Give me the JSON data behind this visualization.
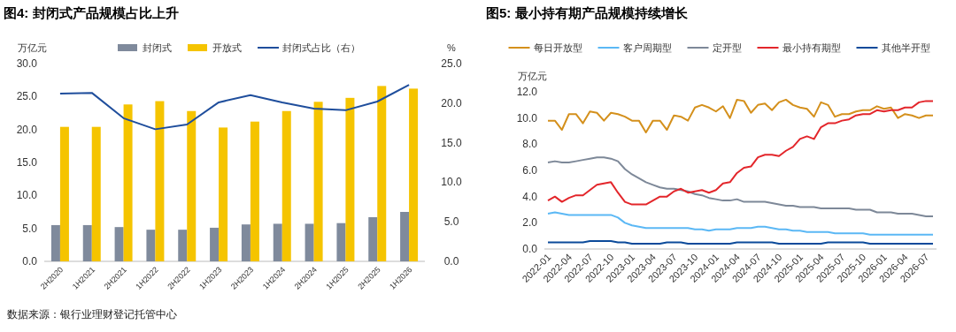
{
  "chart_data": [
    {
      "type": "bar",
      "title": "图4: 封闭式产品规模占比上升",
      "ylabel": "万亿元",
      "y2label": "%",
      "legend": "top",
      "grid": false,
      "categories": [
        "2H2020",
        "1H2021",
        "2H2021",
        "1H2022",
        "2H2022",
        "1H2023",
        "2H2023",
        "1H2024",
        "2H2024",
        "1H2025",
        "2H2025",
        "1H2026"
      ],
      "series": [
        {
          "name": "封闭式",
          "color": "#7f8a9c",
          "values": [
            5.5,
            5.5,
            5.2,
            4.8,
            4.8,
            5.1,
            5.6,
            5.7,
            5.7,
            5.8,
            6.7,
            7.5
          ]
        },
        {
          "name": "开放式",
          "color": "#f5c400",
          "values": [
            20.4,
            20.4,
            23.8,
            24.3,
            22.8,
            20.3,
            21.2,
            22.8,
            24.2,
            24.8,
            26.6,
            26.2
          ]
        },
        {
          "name": "封闭式占比（右）",
          "type": "line",
          "axis": "y2",
          "color": "#1f4e9c",
          "values": [
            21.2,
            21.3,
            18.1,
            16.7,
            17.3,
            20.1,
            21.0,
            20.1,
            19.3,
            19.1,
            20.2,
            22.3
          ]
        }
      ],
      "ylim": [
        0,
        30
      ],
      "yticks": [
        {
          "value": 0,
          "label": "0.0"
        },
        {
          "value": 5,
          "label": "5.0"
        },
        {
          "value": 10,
          "label": "10.0"
        },
        {
          "value": 15,
          "label": "15.0"
        },
        {
          "value": 20,
          "label": "20.0"
        },
        {
          "value": 25,
          "label": "25.0"
        },
        {
          "value": 30,
          "label": "30.0"
        }
      ],
      "y2lim": [
        0,
        25
      ],
      "y2ticks": [
        {
          "value": 0,
          "label": "0.0"
        },
        {
          "value": 5,
          "label": "5.0"
        },
        {
          "value": 10,
          "label": "10.0"
        },
        {
          "value": 15,
          "label": "15.0"
        },
        {
          "value": 20,
          "label": "20.0"
        },
        {
          "value": 25,
          "label": "25.0"
        }
      ],
      "annotations": [
        "数据来源：银行业理财登记托管中心"
      ]
    },
    {
      "type": "line",
      "title": "图5: 最小持有期产品规模持续增长",
      "ylabel": "万亿元",
      "legend": "top",
      "grid": false,
      "categories": [
        "2022-01",
        null,
        null,
        "2022-04",
        null,
        null,
        "2022-07",
        null,
        null,
        "2022-10",
        null,
        null,
        "2023-01",
        null,
        null,
        "2023-04",
        null,
        null,
        "2023-07",
        null,
        null,
        "2023-10",
        null,
        null,
        "2024-01",
        null,
        null,
        "2024-04",
        null,
        null,
        "2024-07",
        null,
        null,
        "2024-10",
        null,
        null,
        "2025-01",
        null,
        null,
        "2025-04",
        null,
        null,
        "2025-07",
        null,
        null,
        "2025-10",
        null,
        null,
        "2026-01",
        null,
        null,
        "2026-04",
        null,
        null,
        "2026-07",
        null
      ],
      "series": [
        {
          "name": "每日开放型",
          "color": "#d4901c",
          "values": [
            9.8,
            9.8,
            9.1,
            10.3,
            10.3,
            9.6,
            10.5,
            10.4,
            9.8,
            10.4,
            10.3,
            10.1,
            9.8,
            9.8,
            8.9,
            9.8,
            9.8,
            9.1,
            10.2,
            10.1,
            9.8,
            10.8,
            11.0,
            10.8,
            10.5,
            10.9,
            10.0,
            11.4,
            11.3,
            10.4,
            11.0,
            11.1,
            10.6,
            11.2,
            11.4,
            11.0,
            10.8,
            10.7,
            10.1,
            11.2,
            11.0,
            10.1,
            10.3,
            10.3,
            10.5,
            10.6,
            10.6,
            10.9,
            10.7,
            10.8,
            10.0,
            10.3,
            10.2,
            10.0,
            10.2,
            10.2
          ]
        },
        {
          "name": "客户周期型",
          "color": "#5bb8f5",
          "values": [
            2.7,
            2.8,
            2.7,
            2.6,
            2.6,
            2.6,
            2.6,
            2.6,
            2.6,
            2.6,
            2.4,
            2.0,
            1.8,
            1.7,
            1.6,
            1.6,
            1.6,
            1.6,
            1.6,
            1.6,
            1.6,
            1.5,
            1.5,
            1.4,
            1.5,
            1.5,
            1.5,
            1.6,
            1.6,
            1.6,
            1.7,
            1.7,
            1.6,
            1.5,
            1.5,
            1.4,
            1.4,
            1.3,
            1.3,
            1.3,
            1.3,
            1.2,
            1.2,
            1.2,
            1.2,
            1.2,
            1.1,
            1.1,
            1.1,
            1.1,
            1.1,
            1.1,
            1.1,
            1.1,
            1.1,
            1.1
          ]
        },
        {
          "name": "定开型",
          "color": "#7d8898",
          "values": [
            6.6,
            6.7,
            6.6,
            6.6,
            6.7,
            6.8,
            6.9,
            7.0,
            7.0,
            6.9,
            6.7,
            6.1,
            5.7,
            5.4,
            5.1,
            4.9,
            4.7,
            4.6,
            4.6,
            4.5,
            4.4,
            4.2,
            4.1,
            3.9,
            3.8,
            3.7,
            3.7,
            3.8,
            3.6,
            3.6,
            3.6,
            3.6,
            3.5,
            3.4,
            3.3,
            3.3,
            3.2,
            3.2,
            3.2,
            3.1,
            3.1,
            3.1,
            3.1,
            3.1,
            3.0,
            3.0,
            3.0,
            2.8,
            2.8,
            2.8,
            2.7,
            2.7,
            2.7,
            2.6,
            2.5,
            2.5
          ]
        },
        {
          "name": "最小持有期型",
          "color": "#e3262b",
          "values": [
            3.7,
            4.0,
            3.6,
            3.9,
            4.1,
            4.1,
            4.5,
            4.9,
            5.0,
            5.1,
            4.3,
            3.6,
            3.4,
            3.4,
            3.4,
            3.7,
            4.0,
            4.0,
            4.4,
            4.6,
            4.3,
            4.4,
            4.5,
            4.3,
            4.5,
            5.0,
            5.1,
            5.8,
            6.2,
            6.3,
            7.0,
            7.2,
            7.2,
            7.1,
            7.5,
            7.8,
            8.4,
            8.6,
            8.4,
            9.3,
            9.6,
            9.6,
            9.8,
            9.9,
            10.2,
            10.3,
            10.3,
            10.6,
            10.5,
            10.6,
            10.6,
            10.8,
            10.8,
            11.2,
            11.3,
            11.3
          ]
        },
        {
          "name": "其他半开型",
          "color": "#0b4a9a",
          "values": [
            0.5,
            0.5,
            0.5,
            0.5,
            0.5,
            0.5,
            0.6,
            0.6,
            0.6,
            0.6,
            0.5,
            0.5,
            0.4,
            0.4,
            0.4,
            0.4,
            0.4,
            0.5,
            0.5,
            0.5,
            0.4,
            0.4,
            0.4,
            0.4,
            0.4,
            0.4,
            0.4,
            0.5,
            0.5,
            0.5,
            0.5,
            0.5,
            0.5,
            0.4,
            0.4,
            0.4,
            0.4,
            0.4,
            0.4,
            0.4,
            0.5,
            0.5,
            0.5,
            0.5,
            0.5,
            0.5,
            0.4,
            0.4,
            0.4,
            0.4,
            0.4,
            0.4,
            0.4,
            0.4,
            0.4,
            0.4
          ]
        }
      ],
      "ylim": [
        0,
        12
      ],
      "yticks": [
        {
          "value": 0,
          "label": "0.0"
        },
        {
          "value": 2,
          "label": "2.0"
        },
        {
          "value": 4,
          "label": "4.0"
        },
        {
          "value": 6,
          "label": "6.0"
        },
        {
          "value": 8,
          "label": "8.0"
        },
        {
          "value": 10,
          "label": "10.0"
        },
        {
          "value": 12,
          "label": "12.0"
        }
      ]
    }
  ]
}
